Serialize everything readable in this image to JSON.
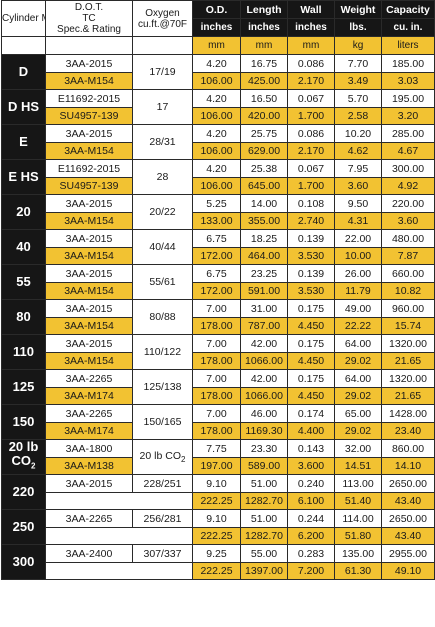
{
  "header": {
    "model": "Cylinder Model",
    "dot_title_1": "D.O.T.",
    "dot_title_2": "TC",
    "dot_title_3": "Spec.& Rating",
    "oxygen_1": "Oxygen",
    "oxygen_2": "cu.ft.@70F",
    "od": "O.D.",
    "length": "Length",
    "wall": "Wall",
    "weight": "Weight",
    "capacity": "Capacity",
    "od_unit_imp": "inches",
    "length_unit_imp": "inches",
    "wall_unit_imp": "inches",
    "weight_unit_imp": "lbs.",
    "capacity_unit_imp": "cu. in.",
    "od_unit_met": "mm",
    "length_unit_met": "mm",
    "wall_unit_met": "mm",
    "weight_unit_met": "kg",
    "capacity_unit_met": "liters"
  },
  "rows": [
    {
      "model": "D",
      "oxygen": "17/19",
      "imp": {
        "spec": "3AA-2015",
        "od": "4.20",
        "length": "16.75",
        "wall": "0.086",
        "weight": "7.70",
        "capacity": "185.00"
      },
      "met": {
        "spec": "3AA-M154",
        "od": "106.00",
        "length": "425.00",
        "wall": "2.170",
        "weight": "3.49",
        "capacity": "3.03"
      }
    },
    {
      "model": "D HS",
      "oxygen": "17",
      "imp": {
        "spec": "E11692-2015",
        "od": "4.20",
        "length": "16.50",
        "wall": "0.067",
        "weight": "5.70",
        "capacity": "195.00"
      },
      "met": {
        "spec": "SU4957-139",
        "od": "106.00",
        "length": "420.00",
        "wall": "1.700",
        "weight": "2.58",
        "capacity": "3.20"
      }
    },
    {
      "model": "E",
      "oxygen": "28/31",
      "imp": {
        "spec": "3AA-2015",
        "od": "4.20",
        "length": "25.75",
        "wall": "0.086",
        "weight": "10.20",
        "capacity": "285.00"
      },
      "met": {
        "spec": "3AA-M154",
        "od": "106.00",
        "length": "629.00",
        "wall": "2.170",
        "weight": "4.62",
        "capacity": "4.67"
      }
    },
    {
      "model": "E HS",
      "oxygen": "28",
      "imp": {
        "spec": "E11692-2015",
        "od": "4.20",
        "length": "25.38",
        "wall": "0.067",
        "weight": "7.95",
        "capacity": "300.00"
      },
      "met": {
        "spec": "SU4957-139",
        "od": "106.00",
        "length": "645.00",
        "wall": "1.700",
        "weight": "3.60",
        "capacity": "4.92"
      }
    },
    {
      "model": "20",
      "oxygen": "20/22",
      "imp": {
        "spec": "3AA-2015",
        "od": "5.25",
        "length": "14.00",
        "wall": "0.108",
        "weight": "9.50",
        "capacity": "220.00"
      },
      "met": {
        "spec": "3AA-M154",
        "od": "133.00",
        "length": "355.00",
        "wall": "2.740",
        "weight": "4.31",
        "capacity": "3.60"
      }
    },
    {
      "model": "40",
      "oxygen": "40/44",
      "imp": {
        "spec": "3AA-2015",
        "od": "6.75",
        "length": "18.25",
        "wall": "0.139",
        "weight": "22.00",
        "capacity": "480.00"
      },
      "met": {
        "spec": "3AA-M154",
        "od": "172.00",
        "length": "464.00",
        "wall": "3.530",
        "weight": "10.00",
        "capacity": "7.87"
      }
    },
    {
      "model": "55",
      "oxygen": "55/61",
      "imp": {
        "spec": "3AA-2015",
        "od": "6.75",
        "length": "23.25",
        "wall": "0.139",
        "weight": "26.00",
        "capacity": "660.00"
      },
      "met": {
        "spec": "3AA-M154",
        "od": "172.00",
        "length": "591.00",
        "wall": "3.530",
        "weight": "11.79",
        "capacity": "10.82"
      }
    },
    {
      "model": "80",
      "oxygen": "80/88",
      "imp": {
        "spec": "3AA-2015",
        "od": "7.00",
        "length": "31.00",
        "wall": "0.175",
        "weight": "49.00",
        "capacity": "960.00"
      },
      "met": {
        "spec": "3AA-M154",
        "od": "178.00",
        "length": "787.00",
        "wall": "4.450",
        "weight": "22.22",
        "capacity": "15.74"
      }
    },
    {
      "model": "110",
      "oxygen": "110/122",
      "imp": {
        "spec": "3AA-2015",
        "od": "7.00",
        "length": "42.00",
        "wall": "0.175",
        "weight": "64.00",
        "capacity": "1320.00"
      },
      "met": {
        "spec": "3AA-M154",
        "od": "178.00",
        "length": "1066.00",
        "wall": "4.450",
        "weight": "29.02",
        "capacity": "21.65"
      }
    },
    {
      "model": "125",
      "oxygen": "125/138",
      "imp": {
        "spec": "3AA-2265",
        "od": "7.00",
        "length": "42.00",
        "wall": "0.175",
        "weight": "64.00",
        "capacity": "1320.00"
      },
      "met": {
        "spec": "3AA-M174",
        "od": "178.00",
        "length": "1066.00",
        "wall": "4.450",
        "weight": "29.02",
        "capacity": "21.65"
      }
    },
    {
      "model": "150",
      "oxygen": "150/165",
      "imp": {
        "spec": "3AA-2265",
        "od": "7.00",
        "length": "46.00",
        "wall": "0.174",
        "weight": "65.00",
        "capacity": "1428.00"
      },
      "met": {
        "spec": "3AA-M174",
        "od": "178.00",
        "length": "1169.30",
        "wall": "4.400",
        "weight": "29.02",
        "capacity": "23.40"
      }
    },
    {
      "model": "20 lb CO2",
      "model_main": "20 lb",
      "model_sub": "CO",
      "model_subscript": "2",
      "oxygen": "20 lb CO",
      "oxygen_subscript": "2",
      "imp": {
        "spec": "3AA-1800",
        "od": "7.75",
        "length": "23.30",
        "wall": "0.143",
        "weight": "32.00",
        "capacity": "860.00"
      },
      "met": {
        "spec": "3AA-M138",
        "od": "197.00",
        "length": "589.00",
        "wall": "3.600",
        "weight": "14.51",
        "capacity": "14.10"
      }
    },
    {
      "model": "220",
      "oxygen": "228/251",
      "imp": {
        "spec": "3AA-2015",
        "od": "9.10",
        "length": "51.00",
        "wall": "0.240",
        "weight": "113.00",
        "capacity": "2650.00"
      },
      "met": {
        "spec": "",
        "od": "222.25",
        "length": "1282.70",
        "wall": "6.100",
        "weight": "51.40",
        "capacity": "43.40"
      }
    },
    {
      "model": "250",
      "oxygen": "256/281",
      "imp": {
        "spec": "3AA-2265",
        "od": "9.10",
        "length": "51.00",
        "wall": "0.244",
        "weight": "114.00",
        "capacity": "2650.00"
      },
      "met": {
        "spec": "",
        "od": "222.25",
        "length": "1282.70",
        "wall": "6.200",
        "weight": "51.80",
        "capacity": "43.40"
      }
    },
    {
      "model": "300",
      "oxygen": "307/337",
      "imp": {
        "spec": "3AA-2400",
        "od": "9.25",
        "length": "55.00",
        "wall": "0.283",
        "weight": "135.00",
        "capacity": "2955.00"
      },
      "met": {
        "spec": "",
        "od": "222.25",
        "length": "1397.00",
        "wall": "7.200",
        "weight": "61.30",
        "capacity": "49.10"
      }
    }
  ],
  "colors": {
    "accent_yellow": "#f2c232",
    "dark": "#161616",
    "white": "#ffffff"
  }
}
